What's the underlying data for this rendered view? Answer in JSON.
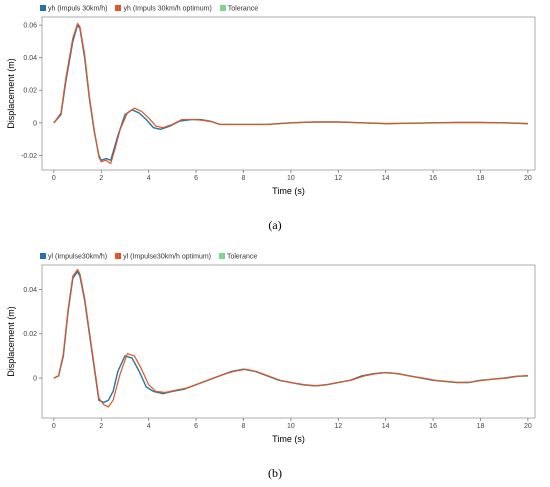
{
  "chart_data": [
    {
      "type": "line",
      "id": "a",
      "xlabel": "Time (s)",
      "ylabel": "Displacement (m)",
      "xlim": [
        -0.5,
        20.3
      ],
      "ylim": [
        -0.029,
        0.065
      ],
      "xticks": [
        0,
        2,
        4,
        6,
        8,
        10,
        12,
        14,
        16,
        18,
        20
      ],
      "yticks": [
        -0.02,
        0,
        0.02,
        0.04,
        0.06
      ],
      "ytick_labels": [
        "-0.02",
        "0",
        "0.02",
        "0.04",
        "0.06"
      ],
      "grid": false,
      "legend_position": "top-left",
      "series": [
        {
          "name": "yh (Impuls 30km/h)",
          "color": "#2a6fb4",
          "x": [
            0,
            0.3,
            0.5,
            0.8,
            1.0,
            1.1,
            1.3,
            1.5,
            1.7,
            1.9,
            2.0,
            2.2,
            2.4,
            2.5,
            2.7,
            3.0,
            3.3,
            3.6,
            3.9,
            4.2,
            4.5,
            4.9,
            5.3,
            5.8,
            6.2,
            6.6,
            7.0,
            8,
            9,
            10,
            11,
            12,
            13,
            14,
            15,
            16,
            17,
            18,
            19,
            20
          ],
          "y": [
            0,
            0.005,
            0.025,
            0.05,
            0.06,
            0.058,
            0.04,
            0.015,
            -0.005,
            -0.02,
            -0.023,
            -0.022,
            -0.023,
            -0.018,
            -0.008,
            0.005,
            0.008,
            0.006,
            0.002,
            -0.003,
            -0.004,
            -0.002,
            0.001,
            0.002,
            0.002,
            0.001,
            -0.001,
            -0.001,
            -0.001,
            0,
            0.0005,
            0.0005,
            0,
            -0.0005,
            -0.0003,
            0,
            0.0002,
            0.0002,
            0,
            -0.0005
          ]
        },
        {
          "name": "yh (Impuls 30km/h optimum)",
          "color": "#e0552b",
          "x": [
            0,
            0.3,
            0.5,
            0.8,
            1.0,
            1.1,
            1.3,
            1.5,
            1.7,
            1.9,
            2.0,
            2.2,
            2.4,
            2.6,
            2.8,
            3.1,
            3.4,
            3.7,
            4.0,
            4.3,
            4.6,
            5.0,
            5.4,
            5.9,
            6.3,
            6.7,
            7.0,
            8,
            9,
            10,
            11,
            12,
            13,
            14,
            15,
            16,
            17,
            18,
            19,
            20
          ],
          "y": [
            0,
            0.006,
            0.027,
            0.052,
            0.061,
            0.059,
            0.042,
            0.016,
            -0.004,
            -0.021,
            -0.024,
            -0.023,
            -0.025,
            -0.015,
            -0.004,
            0.006,
            0.009,
            0.007,
            0.003,
            -0.002,
            -0.003,
            -0.001,
            0.002,
            0.002,
            0.0015,
            0.0005,
            -0.001,
            -0.001,
            -0.001,
            0,
            0.0005,
            0.0005,
            0,
            -0.0005,
            -0.0003,
            0,
            0.0002,
            0.0002,
            0,
            -0.0006
          ]
        },
        {
          "name": "Tolerance",
          "color": "#7fd38a",
          "x": [
            0,
            0.3,
            0.5,
            0.8,
            1.0,
            1.1,
            1.3,
            1.5,
            1.7,
            1.9,
            2.0,
            2.2,
            2.4,
            2.5,
            2.7,
            3.0,
            3.3,
            3.6,
            3.9,
            4.2,
            4.5,
            4.9,
            5.3,
            5.8,
            6.2,
            6.6,
            7.0,
            8,
            9,
            10,
            11,
            12,
            13,
            14,
            15,
            16,
            17,
            18,
            19,
            20
          ],
          "y": [
            0,
            0.005,
            0.025,
            0.05,
            0.06,
            0.058,
            0.04,
            0.015,
            -0.005,
            -0.02,
            -0.023,
            -0.022,
            -0.023,
            -0.018,
            -0.008,
            0.005,
            0.008,
            0.006,
            0.002,
            -0.003,
            -0.004,
            -0.002,
            0.001,
            0.002,
            0.002,
            0.001,
            -0.001,
            -0.001,
            -0.001,
            0,
            0.0005,
            0.0005,
            0,
            -0.0005,
            -0.0003,
            0,
            0.0002,
            0.0002,
            0,
            -0.0005
          ]
        }
      ]
    },
    {
      "type": "line",
      "id": "b",
      "xlabel": "Time (s)",
      "ylabel": "Displacement (m)",
      "xlim": [
        -0.5,
        20.3
      ],
      "ylim": [
        -0.018,
        0.051
      ],
      "xticks": [
        0,
        2,
        4,
        6,
        8,
        10,
        12,
        14,
        16,
        18,
        20
      ],
      "yticks": [
        0,
        0.02,
        0.04
      ],
      "ytick_labels": [
        "0",
        "0.02",
        "0.04"
      ],
      "grid": false,
      "legend_position": "top-left",
      "series": [
        {
          "name": "yl (Impulse30km/h)",
          "color": "#2a6fb4",
          "x": [
            0,
            0.2,
            0.4,
            0.6,
            0.8,
            1.0,
            1.1,
            1.3,
            1.5,
            1.7,
            1.9,
            2.1,
            2.3,
            2.5,
            2.7,
            3.0,
            3.3,
            3.6,
            3.9,
            4.2,
            4.6,
            5.0,
            5.5,
            6.0,
            6.5,
            7.0,
            7.5,
            8.0,
            8.5,
            9.0,
            9.5,
            10.0,
            10.5,
            11.0,
            11.5,
            12.0,
            12.5,
            13.0,
            13.5,
            14.0,
            14.5,
            15.0,
            15.5,
            16.0,
            16.5,
            17.0,
            17.5,
            18.0,
            18.5,
            19.0,
            19.5,
            20.0
          ],
          "y": [
            0,
            0.001,
            0.01,
            0.03,
            0.045,
            0.048,
            0.046,
            0.035,
            0.02,
            0.005,
            -0.01,
            -0.011,
            -0.01,
            -0.006,
            0.003,
            0.01,
            0.009,
            0.003,
            -0.004,
            -0.006,
            -0.007,
            -0.006,
            -0.005,
            -0.003,
            -0.001,
            0.001,
            0.003,
            0.004,
            0.003,
            0.001,
            -0.001,
            -0.002,
            -0.003,
            -0.0035,
            -0.003,
            -0.002,
            -0.001,
            0.001,
            0.002,
            0.0025,
            0.002,
            0.001,
            0.0,
            -0.001,
            -0.0015,
            -0.002,
            -0.002,
            -0.001,
            -0.0005,
            0.0,
            0.0008,
            0.001
          ]
        },
        {
          "name": "yl (Impulse30km/h optimum)",
          "color": "#e0552b",
          "x": [
            0,
            0.2,
            0.4,
            0.6,
            0.8,
            1.0,
            1.1,
            1.3,
            1.5,
            1.7,
            1.9,
            2.1,
            2.3,
            2.5,
            2.8,
            3.1,
            3.4,
            3.7,
            4.0,
            4.3,
            4.7,
            5.1,
            5.6,
            6.1,
            6.6,
            7.1,
            7.6,
            8.1,
            8.6,
            9.1,
            9.6,
            10.1,
            10.6,
            11.1,
            11.6,
            12.1,
            12.6,
            13.1,
            13.6,
            14.1,
            14.6,
            15.1,
            15.6,
            16.1,
            16.6,
            17.1,
            17.6,
            18.1,
            18.6,
            19.1,
            19.6,
            20.0
          ],
          "y": [
            0,
            0.001,
            0.011,
            0.031,
            0.046,
            0.049,
            0.047,
            0.036,
            0.021,
            0.006,
            -0.009,
            -0.012,
            -0.013,
            -0.01,
            0.002,
            0.011,
            0.01,
            0.004,
            -0.003,
            -0.006,
            -0.0065,
            -0.0055,
            -0.0045,
            -0.0025,
            -0.0005,
            0.0015,
            0.003,
            0.004,
            0.0028,
            0.0008,
            -0.0012,
            -0.0022,
            -0.003,
            -0.0035,
            -0.0028,
            -0.0018,
            -0.0008,
            0.001,
            0.002,
            0.0025,
            0.0018,
            0.0008,
            0.0,
            -0.001,
            -0.0015,
            -0.002,
            -0.0018,
            -0.001,
            -0.0004,
            0.0,
            0.0008,
            0.0012
          ]
        },
        {
          "name": "Tolerance",
          "color": "#7fd38a",
          "x": [
            0,
            0.2,
            0.4,
            0.6,
            0.8,
            1.0,
            1.1,
            1.3,
            1.5,
            1.7,
            1.9,
            2.1,
            2.3,
            2.5,
            2.7,
            3.0,
            3.3,
            3.6,
            3.9,
            4.2,
            4.6,
            5.0,
            5.5,
            6.0,
            6.5,
            7.0,
            7.5,
            8.0,
            8.5,
            9.0,
            9.5,
            10.0,
            10.5,
            11.0,
            11.5,
            12.0,
            12.5,
            13.0,
            13.5,
            14.0,
            14.5,
            15.0,
            15.5,
            16.0,
            16.5,
            17.0,
            17.5,
            18.0,
            18.5,
            19.0,
            19.5,
            20.0
          ],
          "y": [
            0,
            0.001,
            0.01,
            0.03,
            0.045,
            0.048,
            0.046,
            0.035,
            0.02,
            0.005,
            -0.01,
            -0.011,
            -0.01,
            -0.006,
            0.003,
            0.01,
            0.009,
            0.003,
            -0.004,
            -0.006,
            -0.007,
            -0.006,
            -0.005,
            -0.003,
            -0.001,
            0.001,
            0.003,
            0.004,
            0.003,
            0.001,
            -0.001,
            -0.002,
            -0.003,
            -0.0035,
            -0.003,
            -0.002,
            -0.001,
            0.001,
            0.002,
            0.0025,
            0.002,
            0.001,
            0.0,
            -0.001,
            -0.0015,
            -0.002,
            -0.002,
            -0.001,
            -0.0005,
            0.0,
            0.0008,
            0.001
          ]
        }
      ]
    }
  ],
  "captions": {
    "a": "(a)",
    "b": "(b)"
  }
}
